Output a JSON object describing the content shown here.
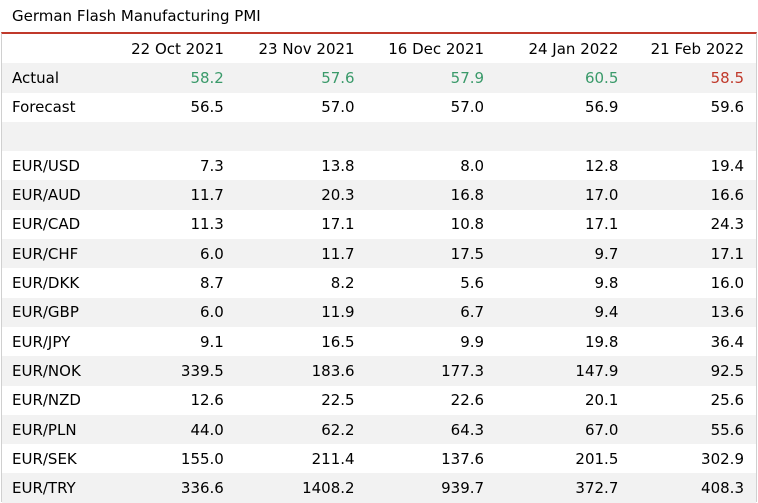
{
  "title": "German Flash Manufacturing PMI",
  "colors": {
    "green": "#3a9a6a",
    "red": "#c0392b",
    "border": "#c0392b"
  },
  "headers": [
    "22 Oct 2021",
    "23 Nov 2021",
    "16 Dec 2021",
    "24 Jan 2022",
    "21 Feb 2022"
  ],
  "actual": {
    "label": "Actual",
    "values": [
      "58.2",
      "57.6",
      "57.9",
      "60.5",
      "58.5"
    ]
  },
  "forecast": {
    "label": "Forecast",
    "values": [
      "56.5",
      "57.0",
      "57.0",
      "56.9",
      "59.6"
    ]
  },
  "rows": [
    {
      "label": "EUR/USD",
      "values": [
        "7.3",
        "13.8",
        "8.0",
        "12.8",
        "19.4"
      ]
    },
    {
      "label": "EUR/AUD",
      "values": [
        "11.7",
        "20.3",
        "16.8",
        "17.0",
        "16.6"
      ]
    },
    {
      "label": "EUR/CAD",
      "values": [
        "11.3",
        "17.1",
        "10.8",
        "17.1",
        "24.3"
      ]
    },
    {
      "label": "EUR/CHF",
      "values": [
        "6.0",
        "11.7",
        "17.5",
        "9.7",
        "17.1"
      ]
    },
    {
      "label": "EUR/DKK",
      "values": [
        "8.7",
        "8.2",
        "5.6",
        "9.8",
        "16.0"
      ]
    },
    {
      "label": "EUR/GBP",
      "values": [
        "6.0",
        "11.9",
        "6.7",
        "9.4",
        "13.6"
      ]
    },
    {
      "label": "EUR/JPY",
      "values": [
        "9.1",
        "16.5",
        "9.9",
        "19.8",
        "36.4"
      ]
    },
    {
      "label": "EUR/NOK",
      "values": [
        "339.5",
        "183.6",
        "177.3",
        "147.9",
        "92.5"
      ]
    },
    {
      "label": "EUR/NZD",
      "values": [
        "12.6",
        "22.5",
        "22.6",
        "20.1",
        "25.6"
      ]
    },
    {
      "label": "EUR/PLN",
      "values": [
        "44.0",
        "62.2",
        "64.3",
        "67.0",
        "55.6"
      ]
    },
    {
      "label": "EUR/SEK",
      "values": [
        "155.0",
        "211.4",
        "137.6",
        "201.5",
        "302.9"
      ]
    },
    {
      "label": "EUR/TRY",
      "values": [
        "336.6",
        "1408.2",
        "939.7",
        "372.7",
        "408.3"
      ]
    }
  ]
}
